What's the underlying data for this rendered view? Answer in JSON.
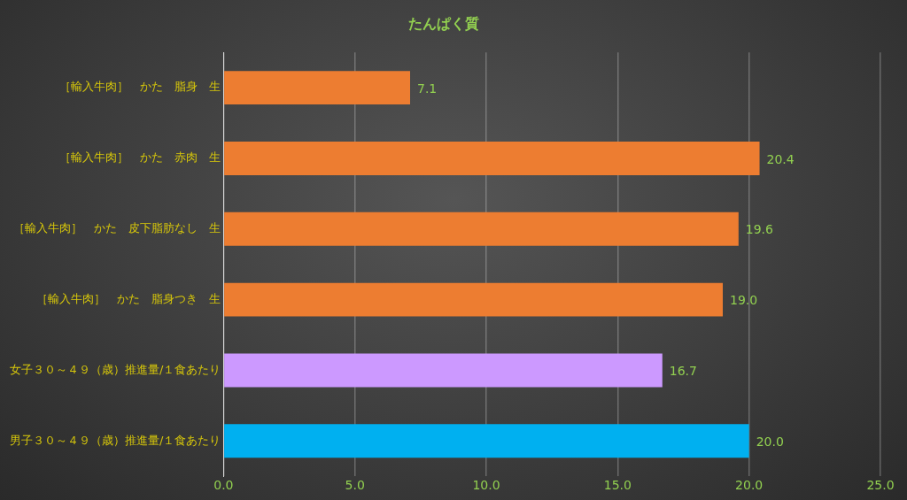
{
  "chart_data": {
    "type": "bar",
    "orientation": "horizontal",
    "title": "たんぱく質",
    "categories": [
      "［輸入牛肉］　かた　脂身　生",
      "［輸入牛肉］　かた　赤肉　生",
      "［輸入牛肉］　かた　皮下脂肪なし　生",
      "［輸入牛肉］　かた　脂身つき　生",
      "女子３０～４９（歳）推進量/１食あたり",
      "男子３０～４９（歳）推進量/１食あたり"
    ],
    "values": [
      7.1,
      20.4,
      19.6,
      19.0,
      16.7,
      20.0
    ],
    "colors": [
      "#ed7d31",
      "#ed7d31",
      "#ed7d31",
      "#ed7d31",
      "#cc99ff",
      "#00b0f0"
    ],
    "value_labels": [
      "7.1",
      "20.4",
      "19.6",
      "19.0",
      "16.7",
      "20.0"
    ],
    "xlim": [
      0,
      25
    ],
    "xticks": [
      {
        "value": 0,
        "label": "0.0"
      },
      {
        "value": 5,
        "label": "5.0"
      },
      {
        "value": 10,
        "label": "10.0"
      },
      {
        "value": 15,
        "label": "15.0"
      },
      {
        "value": 20,
        "label": "20.0"
      },
      {
        "value": 25,
        "label": "25.0"
      }
    ],
    "grid": "x",
    "legend": false
  }
}
